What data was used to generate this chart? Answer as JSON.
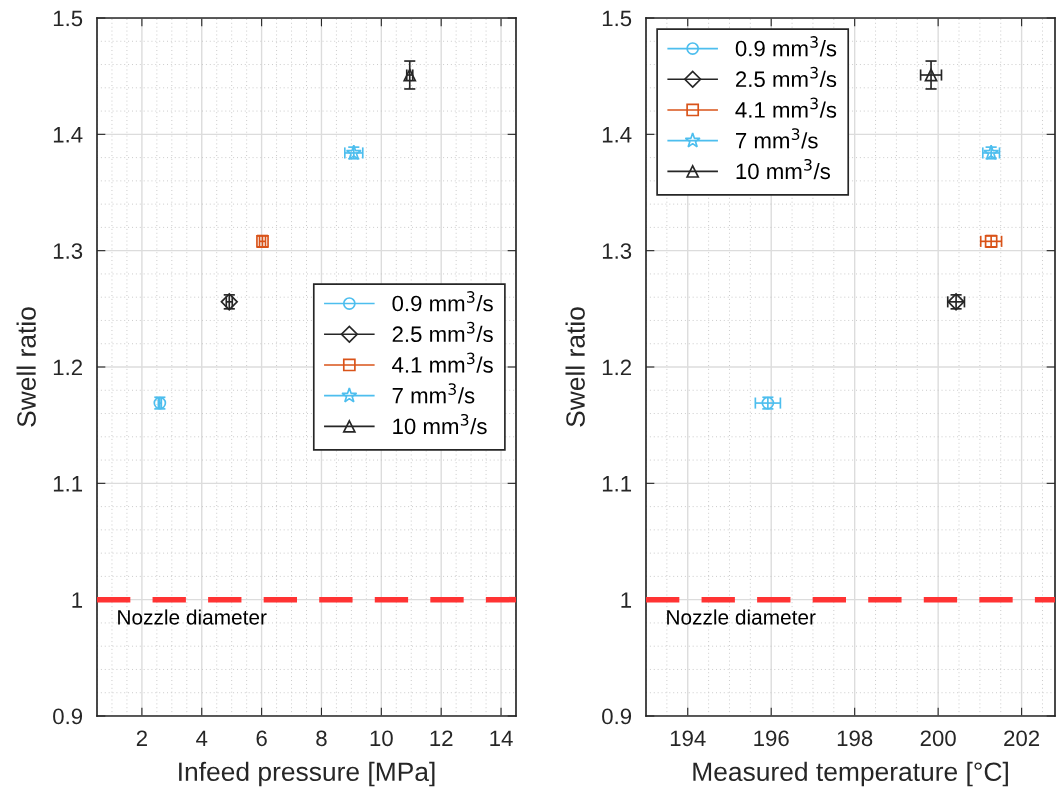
{
  "chart_data": [
    {
      "type": "scatter",
      "xlabel": "Infeed pressure [MPa]",
      "ylabel": "Swell ratio",
      "xlim": [
        0.5,
        14.5
      ],
      "xticks": [
        2,
        4,
        6,
        8,
        10,
        12,
        14
      ],
      "ylim": [
        0.9,
        1.5
      ],
      "yticks": [
        0.9,
        1,
        1.1,
        1.2,
        1.3,
        1.4,
        1.5
      ],
      "grid": true,
      "legend": "right",
      "ref_lines": [
        {
          "axis": "y",
          "value": 1,
          "label": "Nozzle diameter",
          "color": "#ff3333",
          "line_style": "dashed"
        }
      ],
      "series": [
        {
          "name": "0.9 mm$^{3}$/s",
          "color": "#4dbeee",
          "marker": "circle",
          "x": [
            2.6
          ],
          "values": [
            1.169
          ],
          "errors": [
            0.005
          ],
          "xerrors": [
            0.05
          ]
        },
        {
          "name": "2.5 mm$^{3}$/s",
          "color": "#262626",
          "marker": "diamond",
          "x": [
            4.92
          ],
          "values": [
            1.256
          ],
          "errors": [
            0.006
          ],
          "xerrors": [
            0.1
          ]
        },
        {
          "name": "4.1 mm$^{3}$/s",
          "color": "#d95319",
          "marker": "square",
          "x": [
            6.03
          ],
          "values": [
            1.308
          ],
          "errors": [
            0.005
          ],
          "xerrors": [
            0.1
          ]
        },
        {
          "name": "7 mm$^{3}$/s",
          "color": "#4dbeee",
          "marker": "star",
          "x": [
            9.08
          ],
          "values": [
            1.384
          ],
          "errors": [
            0.005
          ],
          "xerrors": [
            0.3
          ]
        },
        {
          "name": "10 mm$^{3}$/s",
          "color": "#262626",
          "marker": "triangle",
          "x": [
            10.95
          ],
          "values": [
            1.451
          ],
          "errors": [
            0.012
          ],
          "xerrors": [
            0.1
          ]
        }
      ]
    },
    {
      "type": "scatter",
      "xlabel": "Measured temperature [°C]",
      "ylabel": "Swell ratio",
      "xlim": [
        193,
        202.8
      ],
      "xticks": [
        194,
        196,
        198,
        200,
        202
      ],
      "ylim": [
        0.9,
        1.5
      ],
      "yticks": [
        0.9,
        1,
        1.1,
        1.2,
        1.3,
        1.4,
        1.5
      ],
      "grid": true,
      "legend": "top left",
      "ref_lines": [
        {
          "axis": "y",
          "value": 1,
          "label": "Nozzle diameter",
          "color": "#ff3333",
          "line_style": "dashed"
        }
      ],
      "series": [
        {
          "name": "0.9 mm$^{3}$/s",
          "color": "#4dbeee",
          "marker": "circle",
          "x": [
            195.92
          ],
          "values": [
            1.169
          ],
          "errors": [
            0.005
          ],
          "xerrors": [
            0.3
          ]
        },
        {
          "name": "2.5 mm$^{3}$/s",
          "color": "#262626",
          "marker": "diamond",
          "x": [
            200.43
          ],
          "values": [
            1.256
          ],
          "errors": [
            0.006
          ],
          "xerrors": [
            0.2
          ]
        },
        {
          "name": "4.1 mm$^{3}$/s",
          "color": "#d95319",
          "marker": "square",
          "x": [
            201.27
          ],
          "values": [
            1.308
          ],
          "errors": [
            0.005
          ],
          "xerrors": [
            0.25
          ]
        },
        {
          "name": "7 mm$^{3}$/s",
          "color": "#4dbeee",
          "marker": "star",
          "x": [
            201.27
          ],
          "values": [
            1.384
          ],
          "errors": [
            0.005
          ],
          "xerrors": [
            0.2
          ]
        },
        {
          "name": "10 mm$^{3}$/s",
          "color": "#262626",
          "marker": "triangle",
          "x": [
            199.83
          ],
          "values": [
            1.451
          ],
          "errors": [
            0.012
          ],
          "xerrors": [
            0.25
          ]
        }
      ]
    }
  ]
}
